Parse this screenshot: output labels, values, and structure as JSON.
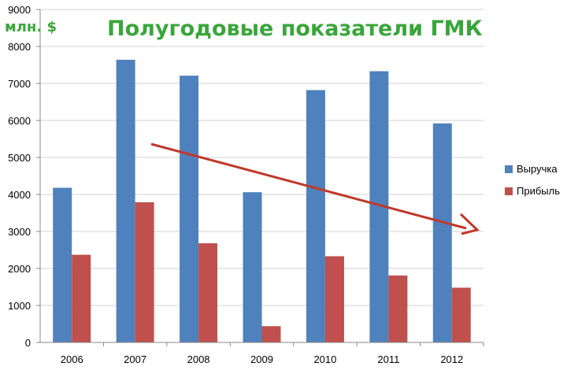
{
  "chart_data": {
    "type": "bar",
    "title": "Полугодовые показатели ГМК",
    "unit_label": "млн. $",
    "categories": [
      "2006",
      "2007",
      "2008",
      "2009",
      "2010",
      "2011",
      "2012"
    ],
    "series": [
      {
        "name": "Выручка",
        "color": "#4f81bd",
        "values": [
          4180,
          7640,
          7210,
          4060,
          6820,
          7330,
          5920
        ]
      },
      {
        "name": "Прибыль",
        "color": "#c0504d",
        "values": [
          2370,
          3790,
          2680,
          440,
          2330,
          1810,
          1480
        ]
      }
    ],
    "ylim": [
      0,
      9000
    ],
    "y_ticks": [
      "0",
      "1000",
      "2000",
      "3000",
      "4000",
      "5000",
      "6000",
      "7000",
      "8000",
      "9000"
    ],
    "grid": true,
    "legend_position": "right",
    "annotation": {
      "type": "trend-arrow",
      "color": "#c0392b"
    }
  }
}
